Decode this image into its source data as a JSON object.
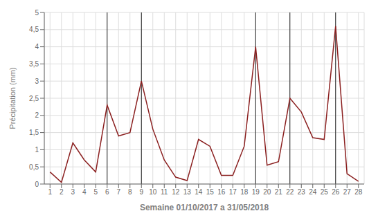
{
  "chart_data": {
    "type": "line",
    "xlabel": "Semaine 01/10/2017 a 31/05/2018",
    "ylabel": "Précipitation (mm)",
    "x": [
      1,
      2,
      3,
      4,
      5,
      6,
      7,
      8,
      9,
      10,
      11,
      12,
      13,
      14,
      15,
      16,
      17,
      18,
      19,
      20,
      21,
      22,
      23,
      24,
      25,
      26,
      27,
      28
    ],
    "values": [
      0.35,
      0.05,
      1.2,
      0.7,
      0.35,
      2.3,
      1.4,
      1.5,
      3.0,
      1.6,
      0.7,
      0.2,
      0.1,
      1.3,
      1.1,
      0.25,
      0.25,
      1.1,
      4.0,
      0.55,
      0.65,
      2.5,
      2.1,
      1.35,
      1.3,
      4.6,
      0.3,
      0.08
    ],
    "color": "#8B2020",
    "xlim": [
      0.5,
      28.5
    ],
    "xticks": [
      1,
      2,
      3,
      4,
      5,
      6,
      7,
      8,
      9,
      10,
      11,
      12,
      13,
      14,
      15,
      16,
      17,
      18,
      19,
      20,
      21,
      22,
      23,
      24,
      25,
      26,
      27,
      28
    ],
    "ylim": [
      0,
      5
    ],
    "yticks": [
      0,
      {
        "value": 0.5,
        "label": "0,5"
      },
      1,
      {
        "value": 1.5,
        "label": "1,5"
      },
      2,
      {
        "value": 2.5,
        "label": "2,5"
      },
      3,
      {
        "value": 3.5,
        "label": "3,5"
      },
      4,
      {
        "value": 4.5,
        "label": "4,5"
      },
      5
    ],
    "grid": true,
    "vertical_lines": {
      "x": [
        6,
        9,
        19,
        22,
        26
      ],
      "color": "#222222"
    }
  }
}
